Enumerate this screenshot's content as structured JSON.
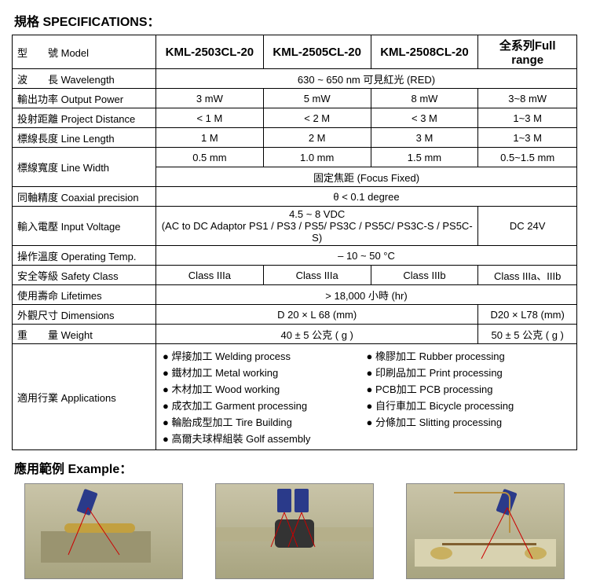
{
  "title_spec": "規格 SPECIFICATIONS：",
  "title_example": "應用範例 Example：",
  "labels": {
    "model": "型　　號 Model",
    "wavelength": "波　　長 Wavelength",
    "output_power": "輸出功率 Output Power",
    "project_distance": "投射距離 Project Distance",
    "line_length": "標線長度 Line Length",
    "line_width": "標線寬度 Line Width",
    "coaxial": "同軸精度 Coaxial precision",
    "input_voltage": "輸入電壓 Input Voltage",
    "operating_temp": "操作溫度 Operating Temp.",
    "safety_class": "安全等級 Safety Class",
    "lifetimes": "使用壽命 Lifetimes",
    "dimensions": "外觀尺寸 Dimensions",
    "weight": "重　　量 Weight",
    "applications": "適用行業 Applications"
  },
  "models": {
    "m1": "KML-2503CL-20",
    "m2": "KML-2505CL-20",
    "m3": "KML-2508CL-20",
    "full": "全系列Full range"
  },
  "wavelength": "630 ~ 650 nm 可見紅光 (RED)",
  "output_power": {
    "m1": "3 mW",
    "m2": "5 mW",
    "m3": "8 mW",
    "full": "3~8 mW"
  },
  "project_distance": {
    "m1": "< 1 M",
    "m2": "< 2 M",
    "m3": "< 3 M",
    "full": "1~3 M"
  },
  "line_length": {
    "m1": "1 M",
    "m2": "2 M",
    "m3": "3 M",
    "full": "1~3 M"
  },
  "line_width": {
    "m1": "0.5 mm",
    "m2": "1.0 mm",
    "m3": "1.5 mm",
    "full": "0.5~1.5 mm"
  },
  "focus_fixed": "固定焦距 (Focus Fixed)",
  "coaxial": "θ < 0.1 degree",
  "input_voltage": {
    "line1": "4.5 ~ 8 VDC",
    "line2": "(AC to DC Adaptor PS1 / PS3 / PS5/ PS3C / PS5C/ PS3C-S / PS5C-S)",
    "full": "DC 24V"
  },
  "operating_temp": "– 10 ~ 50 °C",
  "safety_class": {
    "m1": "Class IIIa",
    "m2": "Class IIIa",
    "m3": "Class IIIb",
    "full": "Class IIIa、IIIb"
  },
  "lifetimes": "> 18,000 小時 (hr)",
  "dimensions": {
    "m123": "D 20 × L 68 (mm)",
    "full": "D20 × L78 (mm)"
  },
  "weight": {
    "m123": "40 ± 5 公克 ( g )",
    "full": "50 ± 5 公克 ( g )"
  },
  "applications": {
    "left": [
      "● 焊接加工  Welding process",
      "● 鐵材加工  Metal working",
      "● 木材加工  Wood working",
      "● 成衣加工  Garment processing",
      "● 輪胎成型加工  Tire Building",
      "● 高爾夫球桿組裝  Golf assembly"
    ],
    "right": [
      "● 橡膠加工  Rubber processing",
      "● 印刷品加工  Print processing",
      "● PCB加工  PCB processing",
      "● 自行車加工  Bicycle processing",
      "● 分條加工  Slitting processing"
    ]
  }
}
